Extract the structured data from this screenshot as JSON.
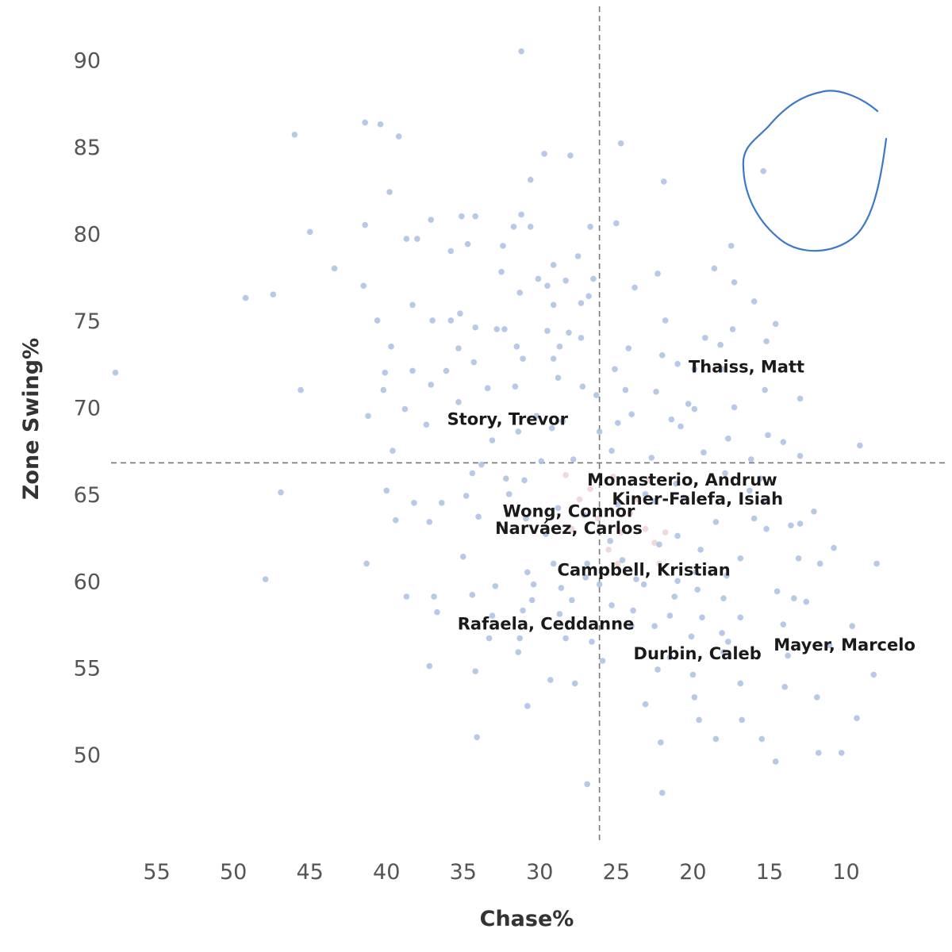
{
  "chart_data": {
    "type": "scatter",
    "title": "",
    "xlabel": "Chase%",
    "ylabel": "Zone Swing%",
    "x_reversed": true,
    "xlim": [
      3.5,
      58.5
    ],
    "ylim": [
      44.8,
      93.0
    ],
    "x_ticks": [
      55,
      50,
      45,
      40,
      35,
      30,
      25,
      20,
      15,
      10
    ],
    "y_ticks": [
      90,
      85,
      80,
      75,
      70,
      65,
      60,
      55,
      50
    ],
    "grid": false,
    "reference_lines": {
      "x": 26.1,
      "y": 66.8
    },
    "highlight_shape": "hand-drawn circle around the top-right point",
    "point_color": "#a9bfe3",
    "dense_cluster_color": "#e8b8bd",
    "labels": [
      {
        "text": "Thaiss, Matt",
        "x": 16.5,
        "y": 72.0
      },
      {
        "text": "Story, Trevor",
        "x": 32.1,
        "y": 69.0
      },
      {
        "text": "Monasterio, Andruw",
        "x": 20.7,
        "y": 65.5
      },
      {
        "text": "Kiner-Falefa, Isiah",
        "x": 19.7,
        "y": 64.4
      },
      {
        "text": "Wong, Connor",
        "x": 28.1,
        "y": 63.7
      },
      {
        "text": "Narváez, Carlos",
        "x": 28.1,
        "y": 62.7
      },
      {
        "text": "Campbell, Kristian",
        "x": 23.2,
        "y": 60.3
      },
      {
        "text": "Rafaela, Ceddanne",
        "x": 29.6,
        "y": 57.2
      },
      {
        "text": "Durbin, Caleb",
        "x": 19.7,
        "y": 55.5
      },
      {
        "text": "Mayer, Marcelo",
        "x": 10.1,
        "y": 56.0
      }
    ],
    "points": [
      [
        31.2,
        90.5
      ],
      [
        41.4,
        86.4
      ],
      [
        40.4,
        86.3
      ],
      [
        46.0,
        85.7
      ],
      [
        39.2,
        85.6
      ],
      [
        24.7,
        85.2
      ],
      [
        29.7,
        84.6
      ],
      [
        28.0,
        84.5
      ],
      [
        30.6,
        83.1
      ],
      [
        21.9,
        83.0
      ],
      [
        15.4,
        83.6
      ],
      [
        39.8,
        82.4
      ],
      [
        41.4,
        80.5
      ],
      [
        35.1,
        81.0
      ],
      [
        34.2,
        81.0
      ],
      [
        31.2,
        81.1
      ],
      [
        30.6,
        80.4
      ],
      [
        31.7,
        80.4
      ],
      [
        26.7,
        80.4
      ],
      [
        25.0,
        80.6
      ],
      [
        37.1,
        80.8
      ],
      [
        45.0,
        80.1
      ],
      [
        38.7,
        79.7
      ],
      [
        38.0,
        79.7
      ],
      [
        35.8,
        79.0
      ],
      [
        34.7,
        79.4
      ],
      [
        32.4,
        79.3
      ],
      [
        27.5,
        78.7
      ],
      [
        17.5,
        79.3
      ],
      [
        43.4,
        78.0
      ],
      [
        29.1,
        78.2
      ],
      [
        32.5,
        77.8
      ],
      [
        22.3,
        77.7
      ],
      [
        18.6,
        78.0
      ],
      [
        30.1,
        77.4
      ],
      [
        28.3,
        77.3
      ],
      [
        26.5,
        77.4
      ],
      [
        41.5,
        77.0
      ],
      [
        47.4,
        76.5
      ],
      [
        49.2,
        76.3
      ],
      [
        31.3,
        76.6
      ],
      [
        29.5,
        77.0
      ],
      [
        23.8,
        76.9
      ],
      [
        17.3,
        77.2
      ],
      [
        38.3,
        75.9
      ],
      [
        35.2,
        75.4
      ],
      [
        29.1,
        75.9
      ],
      [
        27.3,
        76.0
      ],
      [
        26.8,
        76.4
      ],
      [
        16.0,
        76.1
      ],
      [
        40.6,
        75.0
      ],
      [
        37.0,
        75.0
      ],
      [
        35.8,
        75.0
      ],
      [
        34.2,
        74.6
      ],
      [
        32.8,
        74.5
      ],
      [
        29.5,
        74.4
      ],
      [
        28.1,
        74.3
      ],
      [
        27.3,
        74.0
      ],
      [
        21.8,
        75.0
      ],
      [
        19.2,
        74.0
      ],
      [
        17.4,
        74.5
      ],
      [
        14.6,
        74.8
      ],
      [
        39.7,
        73.5
      ],
      [
        35.3,
        73.4
      ],
      [
        32.3,
        74.5
      ],
      [
        31.5,
        73.5
      ],
      [
        28.7,
        73.5
      ],
      [
        24.2,
        73.4
      ],
      [
        18.2,
        73.6
      ],
      [
        15.2,
        73.8
      ],
      [
        40.1,
        72.0
      ],
      [
        38.3,
        72.1
      ],
      [
        36.1,
        72.1
      ],
      [
        34.3,
        72.6
      ],
      [
        31.1,
        72.8
      ],
      [
        29.1,
        72.8
      ],
      [
        25.1,
        72.2
      ],
      [
        22.0,
        73.0
      ],
      [
        21.0,
        72.5
      ],
      [
        19.9,
        72.2
      ],
      [
        18.0,
        72.2
      ],
      [
        57.7,
        72.0
      ],
      [
        45.6,
        71.0
      ],
      [
        40.2,
        71.0
      ],
      [
        37.1,
        71.3
      ],
      [
        33.4,
        71.1
      ],
      [
        31.6,
        71.2
      ],
      [
        28.8,
        71.7
      ],
      [
        27.2,
        71.2
      ],
      [
        26.3,
        70.7
      ],
      [
        24.4,
        71.0
      ],
      [
        22.4,
        70.9
      ],
      [
        20.3,
        70.2
      ],
      [
        15.3,
        71.0
      ],
      [
        13.0,
        70.5
      ],
      [
        41.2,
        69.5
      ],
      [
        38.8,
        69.9
      ],
      [
        35.3,
        70.3
      ],
      [
        30.2,
        69.5
      ],
      [
        28.5,
        69.2
      ],
      [
        24.0,
        69.6
      ],
      [
        21.4,
        69.3
      ],
      [
        19.9,
        69.9
      ],
      [
        17.3,
        70.0
      ],
      [
        37.4,
        69.0
      ],
      [
        33.1,
        68.1
      ],
      [
        31.4,
        68.6
      ],
      [
        29.2,
        68.8
      ],
      [
        26.1,
        68.6
      ],
      [
        24.9,
        69.1
      ],
      [
        20.8,
        68.9
      ],
      [
        17.7,
        68.2
      ],
      [
        15.1,
        68.4
      ],
      [
        14.1,
        68.0
      ],
      [
        9.1,
        67.8
      ],
      [
        39.6,
        67.5
      ],
      [
        33.8,
        66.7
      ],
      [
        29.9,
        66.9
      ],
      [
        27.8,
        67.0
      ],
      [
        25.3,
        67.5
      ],
      [
        22.7,
        67.1
      ],
      [
        19.3,
        67.4
      ],
      [
        16.2,
        67.0
      ],
      [
        13.0,
        67.2
      ],
      [
        34.4,
        66.2
      ],
      [
        32.2,
        65.9
      ],
      [
        31.0,
        65.8
      ],
      [
        26.6,
        66.0
      ],
      [
        21.1,
        65.6
      ],
      [
        17.9,
        66.2
      ],
      [
        15.6,
        65.9
      ],
      [
        46.9,
        65.1
      ],
      [
        40.0,
        65.2
      ],
      [
        34.8,
        64.9
      ],
      [
        32.0,
        65.0
      ],
      [
        23.1,
        65.0
      ],
      [
        20.6,
        64.8
      ],
      [
        16.3,
        65.2
      ],
      [
        38.2,
        64.5
      ],
      [
        36.4,
        64.5
      ],
      [
        28.8,
        64.2
      ],
      [
        24.9,
        64.4
      ],
      [
        22.5,
        64.6
      ],
      [
        15.4,
        64.6
      ],
      [
        39.4,
        63.5
      ],
      [
        37.2,
        63.4
      ],
      [
        34.0,
        63.7
      ],
      [
        30.9,
        63.6
      ],
      [
        27.1,
        63.8
      ],
      [
        18.5,
        63.4
      ],
      [
        16.0,
        63.6
      ],
      [
        12.1,
        64.0
      ],
      [
        32.3,
        63.0
      ],
      [
        29.6,
        62.7
      ],
      [
        21.0,
        62.6
      ],
      [
        13.0,
        63.3
      ],
      [
        13.6,
        63.2
      ],
      [
        15.2,
        63.0
      ],
      [
        25.4,
        62.3
      ],
      [
        22.2,
        62.1
      ],
      [
        19.5,
        61.8
      ],
      [
        16.9,
        61.3
      ],
      [
        13.1,
        61.3
      ],
      [
        10.8,
        61.9
      ],
      [
        41.3,
        61.0
      ],
      [
        35.0,
        61.4
      ],
      [
        29.1,
        61.0
      ],
      [
        26.9,
        61.0
      ],
      [
        24.6,
        61.2
      ],
      [
        19.8,
        60.5
      ],
      [
        11.7,
        61.0
      ],
      [
        8.0,
        61.0
      ],
      [
        47.9,
        60.1
      ],
      [
        30.8,
        60.5
      ],
      [
        27.0,
        60.2
      ],
      [
        23.7,
        60.1
      ],
      [
        21.0,
        60.0
      ],
      [
        17.8,
        60.3
      ],
      [
        32.9,
        59.7
      ],
      [
        30.4,
        59.8
      ],
      [
        28.6,
        59.6
      ],
      [
        26.1,
        59.8
      ],
      [
        23.2,
        59.8
      ],
      [
        19.7,
        59.5
      ],
      [
        14.5,
        59.4
      ],
      [
        38.7,
        59.1
      ],
      [
        36.9,
        59.1
      ],
      [
        34.4,
        59.2
      ],
      [
        30.5,
        58.9
      ],
      [
        27.9,
        58.9
      ],
      [
        25.3,
        58.6
      ],
      [
        21.2,
        59.1
      ],
      [
        18.0,
        59.0
      ],
      [
        13.4,
        59.0
      ],
      [
        12.6,
        58.8
      ],
      [
        36.7,
        58.2
      ],
      [
        33.1,
        58.0
      ],
      [
        31.1,
        58.3
      ],
      [
        28.7,
        58.1
      ],
      [
        23.9,
        58.3
      ],
      [
        21.5,
        58.0
      ],
      [
        19.4,
        57.9
      ],
      [
        16.9,
        57.9
      ],
      [
        24.0,
        57.4
      ],
      [
        22.5,
        57.4
      ],
      [
        18.1,
        57.0
      ],
      [
        14.1,
        57.5
      ],
      [
        9.6,
        57.4
      ],
      [
        33.3,
        56.7
      ],
      [
        31.3,
        56.7
      ],
      [
        28.3,
        56.7
      ],
      [
        26.6,
        56.5
      ],
      [
        20.1,
        56.8
      ],
      [
        17.7,
        56.5
      ],
      [
        31.4,
        55.9
      ],
      [
        25.9,
        55.4
      ],
      [
        21.5,
        55.6
      ],
      [
        18.0,
        55.9
      ],
      [
        13.8,
        55.7
      ],
      [
        11.1,
        56.3
      ],
      [
        37.2,
        55.1
      ],
      [
        34.2,
        54.8
      ],
      [
        22.3,
        54.9
      ],
      [
        20.0,
        54.6
      ],
      [
        8.2,
        54.6
      ],
      [
        29.3,
        54.3
      ],
      [
        27.7,
        54.1
      ],
      [
        16.9,
        54.1
      ],
      [
        14.0,
        53.9
      ],
      [
        19.9,
        53.3
      ],
      [
        11.9,
        53.3
      ],
      [
        30.8,
        52.8
      ],
      [
        23.1,
        52.9
      ],
      [
        19.6,
        52.0
      ],
      [
        16.8,
        52.0
      ],
      [
        9.3,
        52.1
      ],
      [
        34.1,
        51.0
      ],
      [
        18.5,
        50.9
      ],
      [
        15.5,
        50.9
      ],
      [
        22.1,
        50.7
      ],
      [
        11.8,
        50.1
      ],
      [
        10.3,
        50.1
      ],
      [
        14.6,
        49.6
      ],
      [
        26.9,
        48.3
      ],
      [
        22.0,
        47.8
      ]
    ],
    "dense_points": [
      [
        28.3,
        66.1
      ],
      [
        26.7,
        65.3
      ],
      [
        24.1,
        63.9
      ],
      [
        23.1,
        63.0
      ],
      [
        22.5,
        62.2
      ],
      [
        25.5,
        61.8
      ],
      [
        24.7,
        62.8
      ],
      [
        27.4,
        64.7
      ],
      [
        22.2,
        61.0
      ],
      [
        26.2,
        63.6
      ],
      [
        23.6,
        64.7
      ],
      [
        24.9,
        61.0
      ],
      [
        27.9,
        63.0
      ],
      [
        21.8,
        62.8
      ],
      [
        25.2,
        66.0
      ],
      [
        22.9,
        65.8
      ]
    ]
  }
}
